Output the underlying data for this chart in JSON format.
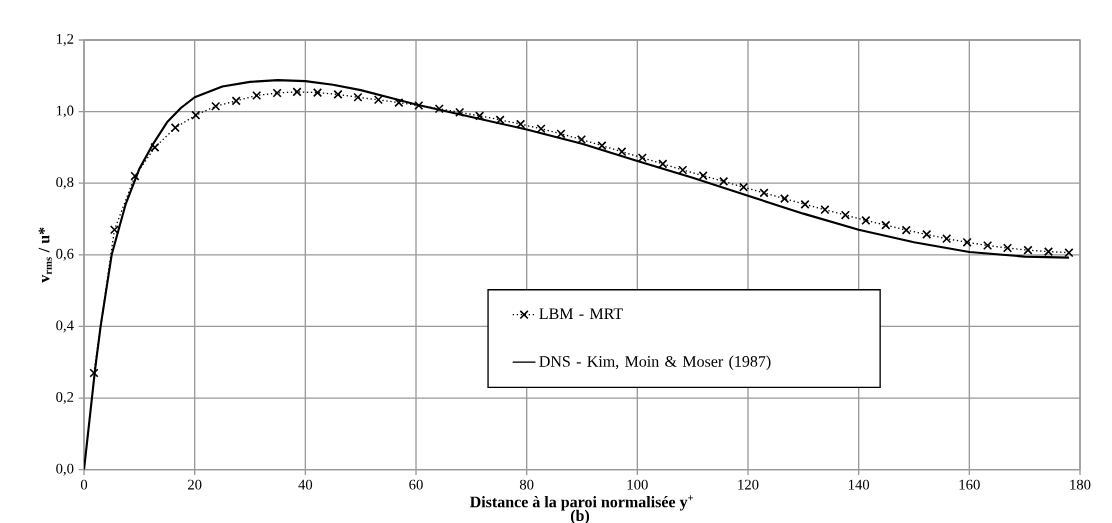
{
  "chart_data": {
    "type": "line",
    "xlabel": "Distance à la paroi normalisée y$^{+}$",
    "ylabel": "v$_{rms}$ / u*",
    "annotations": [
      "(b)"
    ],
    "xlim": [
      0,
      180
    ],
    "xticks": [
      0,
      20,
      40,
      60,
      80,
      100,
      120,
      140,
      160,
      180
    ],
    "ylim": [
      0,
      1.2
    ],
    "yticks": [
      {
        "value": 0,
        "label": "0,0"
      },
      {
        "value": 0.2,
        "label": "0,2"
      },
      {
        "value": 0.4,
        "label": "0,4"
      },
      {
        "value": 0.6,
        "label": "0,6"
      },
      {
        "value": 0.8,
        "label": "0,8"
      },
      {
        "value": 1.0,
        "label": "1,0"
      },
      {
        "value": 1.2,
        "label": "1,2"
      }
    ],
    "grid": true,
    "legend": "bottom right",
    "series": [
      {
        "name": "LBM - MRT",
        "color": "#000000",
        "marker": "cross",
        "line_style": "dotted",
        "x": [
          1.8,
          5.5,
          9.2,
          12.8,
          16.5,
          20.2,
          23.8,
          27.5,
          31.2,
          34.9,
          38.5,
          42.2,
          45.9,
          49.5,
          53.2,
          56.9,
          60.5,
          64.2,
          67.9,
          71.5,
          75.2,
          78.9,
          82.6,
          86.2,
          89.9,
          93.6,
          97.2,
          100.9,
          104.6,
          108.2,
          111.9,
          115.6,
          119.2,
          122.9,
          126.6,
          130.3,
          133.9,
          137.6,
          141.3,
          144.9,
          148.6,
          152.3,
          155.9,
          159.6,
          163.3,
          166.9,
          170.6,
          174.3,
          178.0
        ],
        "values": [
          0.27,
          0.67,
          0.82,
          0.9,
          0.955,
          0.99,
          1.015,
          1.03,
          1.045,
          1.052,
          1.055,
          1.053,
          1.048,
          1.04,
          1.033,
          1.025,
          1.017,
          1.008,
          0.998,
          0.988,
          0.977,
          0.965,
          0.952,
          0.938,
          0.922,
          0.905,
          0.888,
          0.871,
          0.854,
          0.837,
          0.821,
          0.805,
          0.789,
          0.773,
          0.757,
          0.741,
          0.726,
          0.711,
          0.696,
          0.683,
          0.669,
          0.657,
          0.645,
          0.635,
          0.626,
          0.619,
          0.613,
          0.609,
          0.606
        ]
      },
      {
        "name": "DNS - Kim, Moin & Moser (1987)",
        "color": "#000000",
        "marker": "none",
        "line_style": "solid",
        "x": [
          0,
          1,
          2,
          3,
          5,
          7.5,
          10,
          12.5,
          15,
          17.5,
          20,
          25,
          30,
          35,
          40,
          45,
          50,
          55,
          60,
          70,
          80,
          90,
          100,
          110,
          120,
          130,
          140,
          150,
          160,
          170,
          178
        ],
        "values": [
          0,
          0.14,
          0.28,
          0.4,
          0.6,
          0.74,
          0.84,
          0.91,
          0.97,
          1.01,
          1.04,
          1.07,
          1.083,
          1.088,
          1.085,
          1.075,
          1.06,
          1.04,
          1.02,
          0.985,
          0.95,
          0.91,
          0.862,
          0.815,
          0.765,
          0.715,
          0.67,
          0.635,
          0.608,
          0.595,
          0.592
        ]
      }
    ]
  }
}
